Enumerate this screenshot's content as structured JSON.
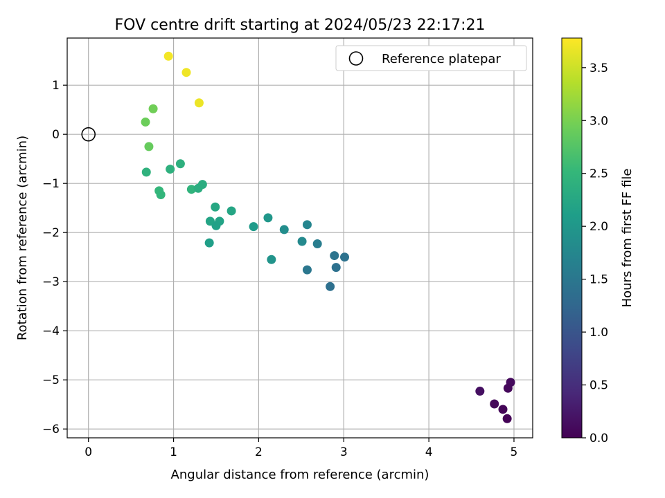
{
  "chart_data": {
    "type": "scatter",
    "title": "FOV centre drift starting at 2024/05/23 22:17:21",
    "xlabel": "Angular distance from reference (arcmin)",
    "ylabel": "Rotation from reference (arcmin)",
    "xlim": [
      -0.25,
      5.22
    ],
    "ylim": [
      -6.18,
      1.96
    ],
    "xticks": [
      "0",
      "1",
      "2",
      "3",
      "4",
      "5"
    ],
    "yticks": [
      "−6",
      "−5",
      "−4",
      "−3",
      "−2",
      "−1",
      "0",
      "1"
    ],
    "grid": true,
    "legend": {
      "placement": "top-right",
      "entries": [
        "Reference platepar"
      ]
    },
    "reference_point": {
      "x": 0,
      "y": 0
    },
    "colorbar": {
      "label": "Hours from first FF file",
      "colormap": "viridis",
      "range": [
        0.0,
        3.78
      ],
      "ticks": [
        "0.0",
        "0.5",
        "1.0",
        "1.5",
        "2.0",
        "2.5",
        "3.0",
        "3.5"
      ]
    },
    "points": [
      {
        "x": 0.94,
        "y": 1.59,
        "h": 3.72
      },
      {
        "x": 1.15,
        "y": 1.26,
        "h": 3.7
      },
      {
        "x": 1.3,
        "y": 0.64,
        "h": 3.68
      },
      {
        "x": 0.76,
        "y": 0.52,
        "h": 2.95
      },
      {
        "x": 0.67,
        "y": 0.25,
        "h": 2.92
      },
      {
        "x": 0.71,
        "y": -0.25,
        "h": 2.88
      },
      {
        "x": 0.68,
        "y": -0.77,
        "h": 2.42
      },
      {
        "x": 0.96,
        "y": -0.71,
        "h": 2.4
      },
      {
        "x": 1.08,
        "y": -0.6,
        "h": 2.38
      },
      {
        "x": 0.83,
        "y": -1.15,
        "h": 2.5
      },
      {
        "x": 0.85,
        "y": -1.23,
        "h": 2.48
      },
      {
        "x": 1.21,
        "y": -1.12,
        "h": 2.45
      },
      {
        "x": 1.29,
        "y": -1.1,
        "h": 2.35
      },
      {
        "x": 1.34,
        "y": -1.02,
        "h": 2.33
      },
      {
        "x": 1.49,
        "y": -1.48,
        "h": 2.25
      },
      {
        "x": 1.68,
        "y": -1.56,
        "h": 2.22
      },
      {
        "x": 1.43,
        "y": -1.77,
        "h": 2.2
      },
      {
        "x": 1.54,
        "y": -1.77,
        "h": 2.18
      },
      {
        "x": 1.5,
        "y": -1.86,
        "h": 2.16
      },
      {
        "x": 1.42,
        "y": -2.21,
        "h": 2.12
      },
      {
        "x": 1.94,
        "y": -1.88,
        "h": 2.05
      },
      {
        "x": 2.11,
        "y": -1.7,
        "h": 2.0
      },
      {
        "x": 2.3,
        "y": -1.94,
        "h": 1.85
      },
      {
        "x": 2.15,
        "y": -2.55,
        "h": 1.95
      },
      {
        "x": 2.51,
        "y": -2.18,
        "h": 1.78
      },
      {
        "x": 2.57,
        "y": -1.84,
        "h": 1.72
      },
      {
        "x": 2.69,
        "y": -2.23,
        "h": 1.6
      },
      {
        "x": 2.57,
        "y": -2.76,
        "h": 1.5
      },
      {
        "x": 2.89,
        "y": -2.47,
        "h": 1.45
      },
      {
        "x": 3.01,
        "y": -2.5,
        "h": 1.42
      },
      {
        "x": 2.91,
        "y": -2.71,
        "h": 1.4
      },
      {
        "x": 2.84,
        "y": -3.1,
        "h": 1.38
      },
      {
        "x": 4.6,
        "y": -5.23,
        "h": 0.15
      },
      {
        "x": 4.96,
        "y": -5.05,
        "h": 0.1
      },
      {
        "x": 4.93,
        "y": -5.17,
        "h": 0.08
      },
      {
        "x": 4.77,
        "y": -5.49,
        "h": 0.06
      },
      {
        "x": 4.87,
        "y": -5.6,
        "h": 0.04
      },
      {
        "x": 4.92,
        "y": -5.79,
        "h": 0.02
      }
    ]
  }
}
